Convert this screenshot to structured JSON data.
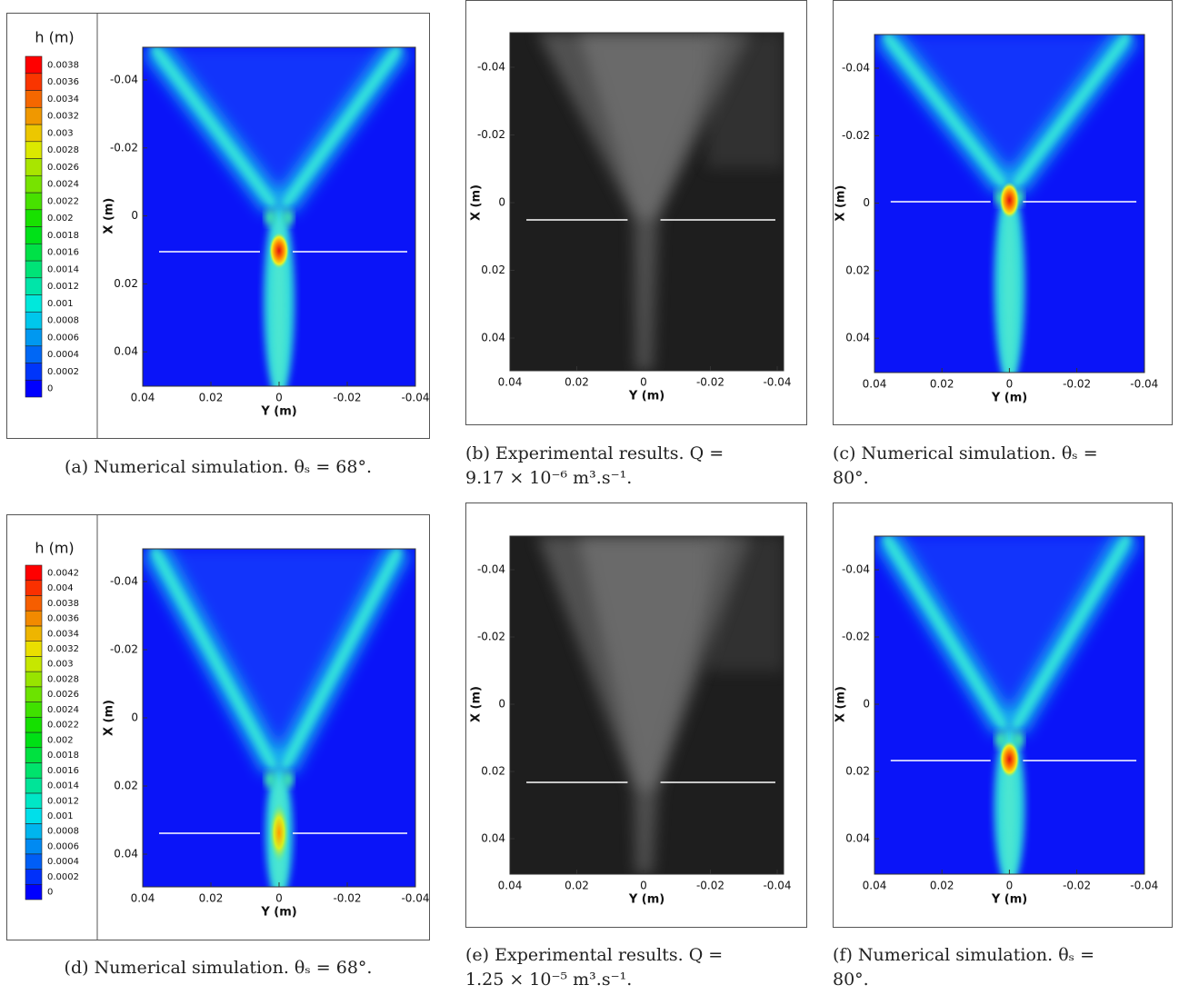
{
  "panels": [
    {
      "colorbar": {
        "title": "h (m)",
        "labels": [
          "0",
          "0.0002",
          "0.0004",
          "0.0006",
          "0.0008",
          "0.001",
          "0.0012",
          "0.0014",
          "0.0016",
          "0.0018",
          "0.002",
          "0.0022",
          "0.0024",
          "0.0026",
          "0.0028",
          "0.003",
          "0.0032",
          "0.0034",
          "0.0036",
          "0.0038"
        ]
      },
      "x_axis_title": "Y (m)",
      "y_axis_title": "X (m)",
      "x_ticks": [
        "0.04",
        "0.02",
        "0",
        "-0.02",
        "-0.04"
      ],
      "y_ticks": [
        "-0.04",
        "-0.02",
        "0",
        "0.02",
        "0.04"
      ],
      "caption": [
        "(a) Numerical simulation.  θₛ = 68°."
      ]
    },
    {
      "x_axis_title": "Y (m)",
      "y_axis_title": "X (m)",
      "x_ticks": [
        "0.04",
        "0.02",
        "0",
        "-0.02",
        "-0.04"
      ],
      "y_ticks": [
        "-0.04",
        "-0.02",
        "0",
        "0.02",
        "0.04"
      ],
      "caption": [
        "(b) Experimental results.  Q =",
        "9.17 × 10⁻⁶ m³.s⁻¹."
      ]
    },
    {
      "x_axis_title": "Y (m)",
      "y_axis_title": "X (m)",
      "x_ticks": [
        "0.04",
        "0.02",
        "0",
        "-0.02",
        "-0.04"
      ],
      "y_ticks": [
        "-0.04",
        "-0.02",
        "0",
        "0.02",
        "0.04"
      ],
      "caption": [
        "(c) Numerical simulation.  θₛ =",
        "80°."
      ]
    },
    {
      "colorbar": {
        "title": "h (m)",
        "labels": [
          "0",
          "0.0002",
          "0.0004",
          "0.0006",
          "0.0008",
          "0.001",
          "0.0012",
          "0.0014",
          "0.0016",
          "0.0018",
          "0.002",
          "0.0022",
          "0.0024",
          "0.0026",
          "0.0028",
          "0.003",
          "0.0032",
          "0.0034",
          "0.0036",
          "0.0038",
          "0.004",
          "0.0042"
        ]
      },
      "x_axis_title": "Y (m)",
      "y_axis_title": "X (m)",
      "x_ticks": [
        "0.04",
        "0.02",
        "0",
        "-0.02",
        "-0.04"
      ],
      "y_ticks": [
        "-0.04",
        "-0.02",
        "0",
        "0.02",
        "0.04"
      ],
      "caption": [
        "(d) Numerical simulation.  θₛ = 68°."
      ]
    },
    {
      "x_axis_title": "Y (m)",
      "y_axis_title": "X (m)",
      "x_ticks": [
        "0.04",
        "0.02",
        "0",
        "-0.02",
        "-0.04"
      ],
      "y_ticks": [
        "-0.04",
        "-0.02",
        "0",
        "0.02",
        "0.04"
      ],
      "caption": [
        "(e) Experimental results.  Q =",
        "1.25 × 10⁻⁵ m³.s⁻¹."
      ]
    },
    {
      "x_axis_title": "Y (m)",
      "y_axis_title": "X (m)",
      "x_ticks": [
        "0.04",
        "0.02",
        "0",
        "-0.02",
        "-0.04"
      ],
      "y_ticks": [
        "-0.04",
        "-0.02",
        "0",
        "0.02",
        "0.04"
      ],
      "caption": [
        "(f) Numerical simulation.  θₛ =",
        "80°."
      ]
    }
  ]
}
